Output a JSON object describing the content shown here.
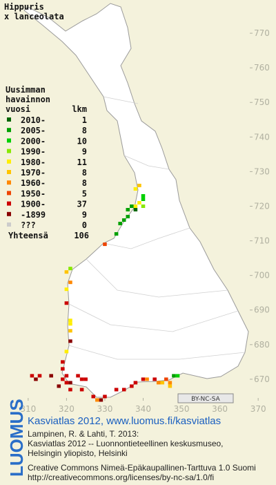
{
  "header": {
    "title": [
      "Hippuris",
      "x lanceolata"
    ]
  },
  "legend": {
    "heading": [
      "Uusimman",
      "havainnon",
      "vuosi"
    ],
    "count_heading": "lkm",
    "rows": [
      {
        "label": "2010-",
        "count": 1,
        "color": "#006600"
      },
      {
        "label": "2005-",
        "count": 8,
        "color": "#00a000"
      },
      {
        "label": "2000-",
        "count": 10,
        "color": "#00d000"
      },
      {
        "label": "1990-",
        "count": 9,
        "color": "#88e800"
      },
      {
        "label": "1980-",
        "count": 11,
        "color": "#ffee00"
      },
      {
        "label": "1970-",
        "count": 8,
        "color": "#ffc400"
      },
      {
        "label": "1960-",
        "count": 8,
        "color": "#ff8800"
      },
      {
        "label": "1950-",
        "count": 5,
        "color": "#ee4400"
      },
      {
        "label": "1900-",
        "count": 37,
        "color": "#cc0000"
      },
      {
        "label": "-1899",
        "count": 9,
        "color": "#880000"
      },
      {
        "label": "???",
        "count": 0,
        "color": "#cccccc"
      }
    ],
    "total_label": "Yhteensä",
    "total": 106
  },
  "map": {
    "xlim": [
      302.65,
      374.65
    ],
    "ylim": [
      659.2,
      779.6
    ],
    "xticks": [
      310,
      320,
      330,
      340,
      350,
      360,
      370
    ],
    "yticks": [
      670,
      680,
      690,
      700,
      710,
      720,
      730,
      740,
      750,
      760,
      770
    ],
    "points": [
      {
        "x": 340,
        "y": 723,
        "class": 2
      },
      {
        "x": 340,
        "y": 722,
        "class": 2
      },
      {
        "x": 340,
        "y": 720,
        "class": 3
      },
      {
        "x": 339,
        "y": 721,
        "class": 4
      },
      {
        "x": 338,
        "y": 720,
        "class": 4
      },
      {
        "x": 338,
        "y": 725,
        "class": 4
      },
      {
        "x": 339,
        "y": 726,
        "class": 5
      },
      {
        "x": 338,
        "y": 719,
        "class": 0
      },
      {
        "x": 337,
        "y": 720,
        "class": 1
      },
      {
        "x": 336,
        "y": 719,
        "class": 1
      },
      {
        "x": 336,
        "y": 717,
        "class": 1
      },
      {
        "x": 335,
        "y": 716,
        "class": 1
      },
      {
        "x": 334,
        "y": 715,
        "class": 1
      },
      {
        "x": 333,
        "y": 712,
        "class": 1
      },
      {
        "x": 330,
        "y": 709,
        "class": 7
      },
      {
        "x": 321,
        "y": 702,
        "class": 3
      },
      {
        "x": 320,
        "y": 701,
        "class": 5
      },
      {
        "x": 321,
        "y": 698,
        "class": 6
      },
      {
        "x": 320,
        "y": 696,
        "class": 4
      },
      {
        "x": 320,
        "y": 692,
        "class": 8
      },
      {
        "x": 321,
        "y": 687,
        "class": 4
      },
      {
        "x": 321,
        "y": 686,
        "class": 4
      },
      {
        "x": 321,
        "y": 684,
        "class": 5
      },
      {
        "x": 321,
        "y": 681,
        "class": 9
      },
      {
        "x": 320,
        "y": 678,
        "class": 4
      },
      {
        "x": 319,
        "y": 675,
        "class": 8
      },
      {
        "x": 319,
        "y": 673,
        "class": 8
      },
      {
        "x": 311,
        "y": 671,
        "class": 8
      },
      {
        "x": 312,
        "y": 670,
        "class": 9
      },
      {
        "x": 313,
        "y": 671,
        "class": 8
      },
      {
        "x": 316,
        "y": 671,
        "class": 9
      },
      {
        "x": 319,
        "y": 670,
        "class": 8
      },
      {
        "x": 320,
        "y": 671,
        "class": 8
      },
      {
        "x": 321,
        "y": 669,
        "class": 9
      },
      {
        "x": 323,
        "y": 671,
        "class": 8
      },
      {
        "x": 324,
        "y": 670,
        "class": 8
      },
      {
        "x": 325,
        "y": 670,
        "class": 8
      },
      {
        "x": 318,
        "y": 668,
        "class": 9
      },
      {
        "x": 320,
        "y": 669,
        "class": 8
      },
      {
        "x": 321,
        "y": 667,
        "class": 8
      },
      {
        "x": 324,
        "y": 667,
        "class": 8
      },
      {
        "x": 327,
        "y": 665,
        "class": 8
      },
      {
        "x": 329,
        "y": 664,
        "class": 9
      },
      {
        "x": 328,
        "y": 664,
        "class": 6
      },
      {
        "x": 330,
        "y": 665,
        "class": 8
      },
      {
        "x": 333,
        "y": 667,
        "class": 8
      },
      {
        "x": 335,
        "y": 667,
        "class": 8
      },
      {
        "x": 337,
        "y": 668,
        "class": 8
      },
      {
        "x": 338,
        "y": 669,
        "class": 8
      },
      {
        "x": 340,
        "y": 670,
        "class": 8
      },
      {
        "x": 341,
        "y": 670,
        "class": 6
      },
      {
        "x": 343,
        "y": 670,
        "class": 8
      },
      {
        "x": 344,
        "y": 669,
        "class": 6
      },
      {
        "x": 345,
        "y": 669,
        "class": 5
      },
      {
        "x": 346,
        "y": 670,
        "class": 7
      },
      {
        "x": 348,
        "y": 671,
        "class": 1
      },
      {
        "x": 349,
        "y": 671,
        "class": 2
      },
      {
        "x": 347,
        "y": 669,
        "class": 6
      },
      {
        "x": 347,
        "y": 668,
        "class": 5
      }
    ]
  },
  "badge": "BY-NC-SA",
  "footer": {
    "logo": "LUOMUS",
    "link": "Kasviatlas 2012, www.luomus.fi/kasviatlas",
    "citation": [
      "Lampinen, R. & Lahti, T. 2013:",
      "Kasviatlas 2012 -- Luonnontieteellinen keskusmuseo,",
      "Helsingin yliopisto, Helsinki"
    ],
    "license": [
      "Creative Commons Nimeä-Epäkaupallinen-Tarttuva 1.0 Suomi",
      "http://creativecommons.org/licenses/by-nc-sa/1.0/fi"
    ]
  }
}
